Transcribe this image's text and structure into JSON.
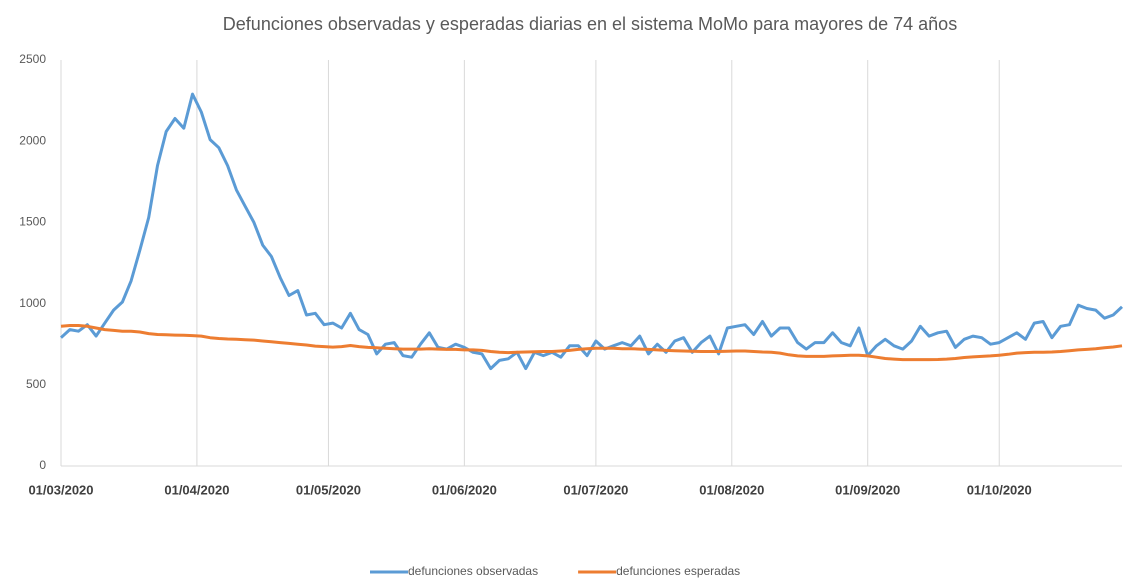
{
  "chart_data": {
    "type": "line",
    "title": "Defunciones observadas y esperadas diarias en el sistema MoMo para mayores de 74 años",
    "x": [
      "01/03/2020",
      "03/03/2020",
      "05/03/2020",
      "07/03/2020",
      "09/03/2020",
      "11/03/2020",
      "13/03/2020",
      "15/03/2020",
      "17/03/2020",
      "19/03/2020",
      "21/03/2020",
      "23/03/2020",
      "25/03/2020",
      "27/03/2020",
      "29/03/2020",
      "31/03/2020",
      "02/04/2020",
      "04/04/2020",
      "06/04/2020",
      "08/04/2020",
      "10/04/2020",
      "12/04/2020",
      "14/04/2020",
      "16/04/2020",
      "18/04/2020",
      "20/04/2020",
      "22/04/2020",
      "24/04/2020",
      "26/04/2020",
      "28/04/2020",
      "30/04/2020",
      "02/05/2020",
      "04/05/2020",
      "06/05/2020",
      "08/05/2020",
      "10/05/2020",
      "12/05/2020",
      "14/05/2020",
      "16/05/2020",
      "18/05/2020",
      "20/05/2020",
      "22/05/2020",
      "24/05/2020",
      "26/05/2020",
      "28/05/2020",
      "30/05/2020",
      "01/06/2020",
      "03/06/2020",
      "05/06/2020",
      "07/06/2020",
      "09/06/2020",
      "11/06/2020",
      "13/06/2020",
      "15/06/2020",
      "17/06/2020",
      "19/06/2020",
      "21/06/2020",
      "23/06/2020",
      "25/06/2020",
      "27/06/2020",
      "29/06/2020",
      "01/07/2020",
      "03/07/2020",
      "05/07/2020",
      "07/07/2020",
      "09/07/2020",
      "11/07/2020",
      "13/07/2020",
      "15/07/2020",
      "17/07/2020",
      "19/07/2020",
      "21/07/2020",
      "23/07/2020",
      "25/07/2020",
      "27/07/2020",
      "29/07/2020",
      "31/07/2020",
      "02/08/2020",
      "04/08/2020",
      "06/08/2020",
      "08/08/2020",
      "10/08/2020",
      "12/08/2020",
      "14/08/2020",
      "16/08/2020",
      "18/08/2020",
      "20/08/2020",
      "22/08/2020",
      "24/08/2020",
      "26/08/2020",
      "28/08/2020",
      "30/08/2020",
      "01/09/2020",
      "03/09/2020",
      "05/09/2020",
      "07/09/2020",
      "09/09/2020",
      "11/09/2020",
      "13/09/2020",
      "15/09/2020",
      "17/09/2020",
      "19/09/2020",
      "21/09/2020",
      "23/09/2020",
      "25/09/2020",
      "27/09/2020",
      "29/09/2020",
      "01/10/2020",
      "03/10/2020",
      "05/10/2020",
      "07/10/2020",
      "09/10/2020",
      "11/10/2020",
      "13/10/2020",
      "15/10/2020",
      "17/10/2020",
      "19/10/2020",
      "21/10/2020",
      "23/10/2020",
      "25/10/2020",
      "27/10/2020",
      "29/10/2020"
    ],
    "series": [
      {
        "name": "defunciones observadas",
        "color": "#5b9bd5",
        "values": [
          790,
          840,
          830,
          870,
          800,
          880,
          960,
          1010,
          1140,
          1330,
          1530,
          1850,
          2060,
          2140,
          2080,
          2290,
          2180,
          2010,
          1960,
          1850,
          1700,
          1600,
          1500,
          1360,
          1290,
          1160,
          1050,
          1080,
          930,
          940,
          870,
          880,
          850,
          940,
          840,
          810,
          690,
          750,
          760,
          680,
          670,
          750,
          820,
          730,
          720,
          750,
          730,
          700,
          690,
          600,
          650,
          660,
          700,
          600,
          700,
          680,
          700,
          670,
          740,
          740,
          680,
          770,
          720,
          740,
          760,
          740,
          800,
          690,
          750,
          700,
          770,
          790,
          700,
          760,
          800,
          690,
          850,
          860,
          870,
          810,
          890,
          800,
          850,
          850,
          760,
          720,
          760,
          760,
          820,
          760,
          740,
          850,
          680,
          740,
          780,
          740,
          720,
          770,
          860,
          800,
          820,
          830,
          730,
          780,
          800,
          790,
          750,
          760,
          790,
          820,
          780,
          880,
          890,
          790,
          860,
          870,
          990,
          970,
          960,
          910,
          930,
          980
        ]
      },
      {
        "name": "defunciones esperadas",
        "color": "#ed7d31",
        "values": [
          860,
          865,
          865,
          860,
          850,
          840,
          835,
          830,
          830,
          825,
          815,
          810,
          808,
          806,
          805,
          803,
          800,
          790,
          785,
          782,
          780,
          778,
          775,
          770,
          765,
          760,
          755,
          750,
          745,
          738,
          735,
          732,
          735,
          742,
          735,
          730,
          728,
          725,
          722,
          720,
          720,
          720,
          722,
          720,
          718,
          718,
          715,
          715,
          712,
          705,
          700,
          698,
          700,
          702,
          703,
          705,
          705,
          708,
          712,
          718,
          722,
          725,
          725,
          725,
          722,
          722,
          720,
          718,
          715,
          712,
          710,
          708,
          706,
          705,
          705,
          705,
          706,
          708,
          708,
          705,
          702,
          700,
          695,
          685,
          678,
          675,
          675,
          675,
          678,
          680,
          682,
          682,
          678,
          670,
          662,
          658,
          655,
          655,
          655,
          655,
          656,
          658,
          662,
          668,
          672,
          675,
          678,
          682,
          688,
          695,
          698,
          700,
          700,
          702,
          705,
          710,
          715,
          718,
          722,
          728,
          733,
          740
        ]
      }
    ],
    "xlim": [
      "01/03/2020",
      "29/10/2020"
    ],
    "xticks": [
      "01/03/2020",
      "01/04/2020",
      "01/05/2020",
      "01/06/2020",
      "01/07/2020",
      "01/08/2020",
      "01/09/2020",
      "01/10/2020"
    ],
    "ylim": [
      0,
      2500
    ],
    "yticks": [
      0,
      500,
      1000,
      1500,
      2000,
      2500
    ],
    "grid": "x",
    "legend": "bottom"
  }
}
